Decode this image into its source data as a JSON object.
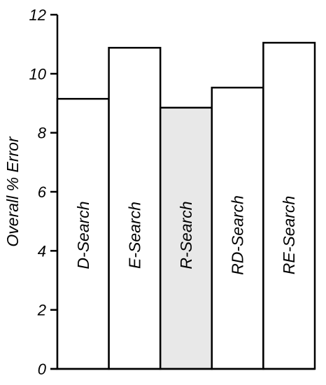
{
  "chart_data": {
    "type": "bar",
    "title": "",
    "xlabel": "",
    "ylabel": "Overall % Error",
    "ylim": [
      0,
      12
    ],
    "yticks": [
      0,
      2,
      4,
      6,
      8,
      10,
      12
    ],
    "grid": false,
    "legend": "none",
    "categories": [
      "D-Search",
      "E-Search",
      "R-Search",
      "RD-Search",
      "RE-Search"
    ],
    "values": [
      9.15,
      10.88,
      8.85,
      9.53,
      11.05
    ],
    "colors": [
      "#ffffff",
      "#ffffff",
      "#e8e8e8",
      "#ffffff",
      "#ffffff"
    ],
    "edge_color": "#000000"
  }
}
